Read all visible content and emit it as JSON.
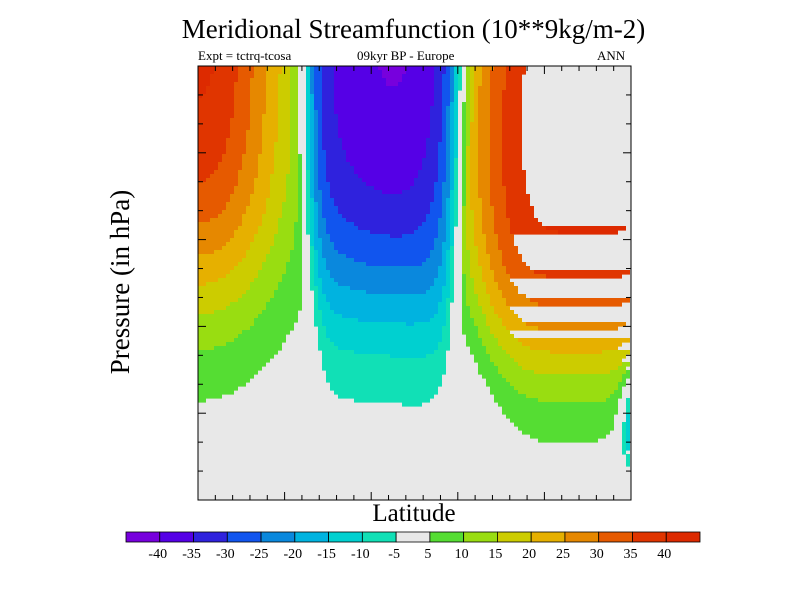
{
  "chart_data": {
    "type": "heatmap",
    "title": "Meridional Streamfunction (10**9kg/m-2)",
    "subtitle_left": "Expt = tctrq-tcosa",
    "subtitle_center": "09kyr BP - Europe",
    "subtitle_right": "ANN",
    "xlabel": "Latitude",
    "ylabel": "Pressure (in hPa)",
    "levels": [
      -40,
      -35,
      -30,
      -25,
      -20,
      -15,
      -10,
      -5,
      5,
      10,
      15,
      20,
      25,
      30,
      35,
      40
    ],
    "level_labels": [
      "-40",
      "-35",
      "-30",
      "-25",
      "-20",
      "-15",
      "-10",
      "-5",
      "5",
      "10",
      "15",
      "20",
      "25",
      "30",
      "35",
      "40"
    ],
    "colors": [
      "#7700dd",
      "#5500e6",
      "#2f22dd",
      "#1155ee",
      "#0a88dd",
      "#00b3e0",
      "#00d0d0",
      "#11e0b6",
      "#e8e8e8",
      "#55dd33",
      "#99dd11",
      "#cccc00",
      "#e6b000",
      "#e68800",
      "#e65a00",
      "#e03500",
      "#dd2a00"
    ],
    "features": [
      {
        "name": "negative-cell",
        "sign": "negative",
        "peak": -42
      },
      {
        "name": "positive-cell-south",
        "sign": "positive",
        "peak": 42
      },
      {
        "name": "positive-cell-north",
        "sign": "positive",
        "peak": 44
      }
    ]
  }
}
